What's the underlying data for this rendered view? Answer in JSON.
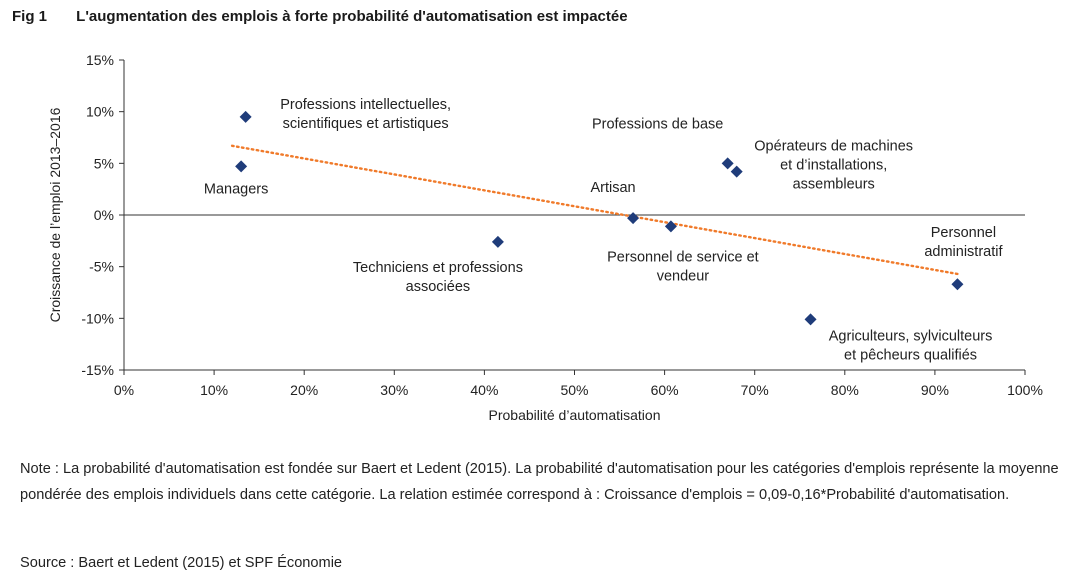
{
  "figure": {
    "number": "Fig 1",
    "title": "L'augmentation des emplois à forte probabilité d'automatisation est impactée"
  },
  "chart_data": {
    "type": "scatter",
    "xlabel": "Probabilité d’automatisation",
    "ylabel": "Croissance de l’emploi 2013–2016",
    "xlim": [
      0,
      1
    ],
    "ylim": [
      -0.15,
      0.15
    ],
    "x_ticks": [
      {
        "value": 0,
        "label": "0%"
      },
      {
        "value": 0.1,
        "label": "10%"
      },
      {
        "value": 0.2,
        "label": "20%"
      },
      {
        "value": 0.3,
        "label": "30%"
      },
      {
        "value": 0.4,
        "label": "40%"
      },
      {
        "value": 0.5,
        "label": "50%"
      },
      {
        "value": 0.6,
        "label": "60%"
      },
      {
        "value": 0.7,
        "label": "70%"
      },
      {
        "value": 0.8,
        "label": "80%"
      },
      {
        "value": 0.9,
        "label": "90%"
      },
      {
        "value": 1.0,
        "label": "100%"
      }
    ],
    "y_ticks": [
      {
        "value": 0.15,
        "label": "15%"
      },
      {
        "value": 0.1,
        "label": "10%"
      },
      {
        "value": 0.05,
        "label": "5%"
      },
      {
        "value": 0,
        "label": "0%"
      },
      {
        "value": -0.05,
        "label": "-5%"
      },
      {
        "value": -0.1,
        "label": "-10%"
      },
      {
        "value": -0.15,
        "label": "-15%"
      }
    ],
    "grid": false,
    "marker_color": "#1f3c7a",
    "trend_color": "#f07a2a",
    "points": [
      {
        "x": 0.135,
        "y": 0.095,
        "label_lines": [
          "Professions intellectuelles,",
          "scientifiques et artistiques"
        ],
        "label_pos": "right"
      },
      {
        "x": 0.13,
        "y": 0.047,
        "label_lines": [
          "Managers"
        ],
        "label_pos": "below"
      },
      {
        "x": 0.415,
        "y": -0.026,
        "label_lines": [
          "Techniciens et professions",
          "associées"
        ],
        "label_pos": "below-left"
      },
      {
        "x": 0.565,
        "y": -0.003,
        "label_lines": [
          "Artisan"
        ],
        "label_pos": "above"
      },
      {
        "x": 0.607,
        "y": -0.011,
        "label_lines": [
          "Personnel de service et",
          "vendeur"
        ],
        "label_pos": "below"
      },
      {
        "x": 0.67,
        "y": 0.05,
        "label_lines": [
          "Professions de base"
        ],
        "label_pos": "above-left"
      },
      {
        "x": 0.68,
        "y": 0.042,
        "label_lines": [
          "Opérateurs de machines",
          "et d’installations,",
          "assembleurs"
        ],
        "label_pos": "right"
      },
      {
        "x": 0.762,
        "y": -0.101,
        "label_lines": [
          "Agriculteurs, sylviculteurs",
          "et pêcheurs qualifiés"
        ],
        "label_pos": "below-right"
      },
      {
        "x": 0.925,
        "y": -0.067,
        "label_lines": [
          "Personnel",
          "administratif"
        ],
        "label_pos": "above"
      }
    ],
    "trendline": {
      "x0": 0.12,
      "y0": 0.067,
      "x1": 0.925,
      "y1": -0.057,
      "style": "dotted"
    }
  },
  "note": "Note : La probabilité d'automatisation est fondée sur Baert et Ledent (2015). La probabilité d'automatisation pour les catégories d'emplois représente la moyenne pondérée des emplois individuels dans cette catégorie. La relation estimée correspond à : Croissance d'emplois = 0,09-0,16*Probabilité d'automatisation.",
  "source": "Source : Baert et Ledent (2015) et SPF Économie"
}
